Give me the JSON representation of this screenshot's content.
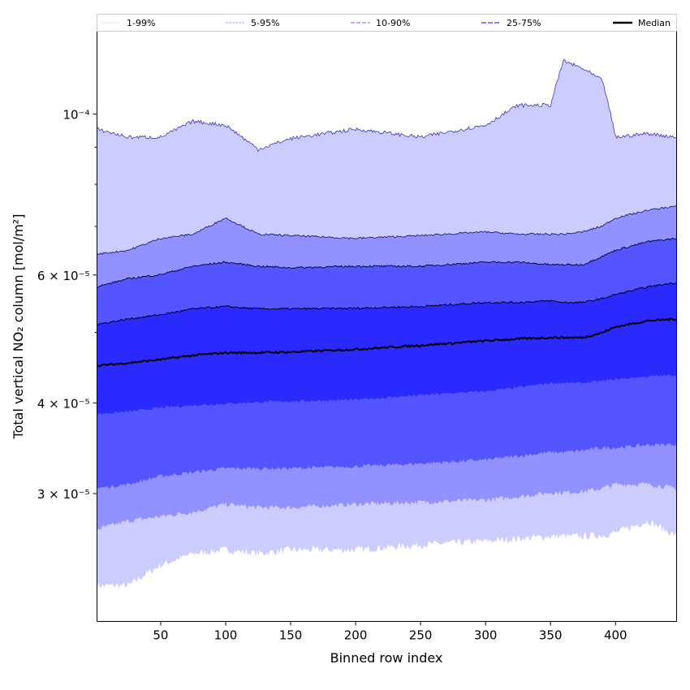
{
  "chart_data": {
    "type": "area",
    "title": "",
    "xlabel": "Binned row index",
    "ylabel": "Total vertical NO₂ column [mol/m²]",
    "yscale": "log",
    "xlim": [
      1,
      447
    ],
    "ylim": [
      2e-05,
      0.00013
    ],
    "grid": false,
    "legend_placement": "top, horizontal",
    "xticks": [
      50,
      100,
      150,
      200,
      250,
      300,
      350,
      400
    ],
    "xtick_labels": [
      "50",
      "100",
      "150",
      "200",
      "250",
      "300",
      "350",
      "400"
    ],
    "yticks": [
      0.0001,
      6e-05,
      4e-05,
      3e-05
    ],
    "ytick_labels": [
      "10⁻⁴",
      "6 × 10⁻⁵",
      "4 × 10⁻⁵",
      "3 × 10⁻⁵"
    ],
    "yminor_ticks": [
      5e-05,
      7e-05,
      8e-05,
      9e-05
    ],
    "legend": [
      "1-99%",
      "5-95%",
      "10-90%",
      "25-75%",
      "Median"
    ],
    "colors": {
      "band_1_99": "#ccccff",
      "band_5_95": "#9191ff",
      "band_10_90": "#5555ff",
      "band_25_75": "#2a2aff",
      "median": "#000000"
    },
    "x": [
      1,
      25,
      50,
      75,
      100,
      125,
      150,
      200,
      250,
      300,
      325,
      350,
      360,
      375,
      390,
      400,
      425,
      447
    ],
    "series": [
      {
        "name": "p1",
        "values": [
          2.24e-05,
          2.24e-05,
          2.39e-05,
          2.48e-05,
          2.51e-05,
          2.48e-05,
          2.51e-05,
          2.51e-05,
          2.55e-05,
          2.58e-05,
          2.6e-05,
          2.62e-05,
          2.62e-05,
          2.62e-05,
          2.63e-05,
          2.65e-05,
          2.75e-05,
          2.62e-05
        ]
      },
      {
        "name": "p5",
        "values": [
          2.68e-05,
          2.75e-05,
          2.79e-05,
          2.83e-05,
          2.9e-05,
          2.87e-05,
          2.87e-05,
          2.9e-05,
          2.92e-05,
          2.94e-05,
          2.97e-05,
          3.01e-05,
          3.01e-05,
          3.02e-05,
          3.05e-05,
          3.09e-05,
          3.09e-05,
          3.05e-05
        ]
      },
      {
        "name": "p10",
        "values": [
          3.05e-05,
          3.09e-05,
          3.17e-05,
          3.21e-05,
          3.25e-05,
          3.25e-05,
          3.25e-05,
          3.27e-05,
          3.3e-05,
          3.34e-05,
          3.38e-05,
          3.42e-05,
          3.42e-05,
          3.44e-05,
          3.47e-05,
          3.47e-05,
          3.5e-05,
          3.51e-05
        ]
      },
      {
        "name": "p25",
        "values": [
          3.86e-05,
          3.89e-05,
          3.94e-05,
          3.97e-05,
          3.99e-05,
          4.01e-05,
          4.02e-05,
          4.04e-05,
          4.1e-05,
          4.15e-05,
          4.2e-05,
          4.26e-05,
          4.26e-05,
          4.26e-05,
          4.29e-05,
          4.31e-05,
          4.35e-05,
          4.37e-05
        ]
      },
      {
        "name": "median",
        "values": [
          4.5e-05,
          4.54e-05,
          4.59e-05,
          4.65e-05,
          4.69e-05,
          4.69e-05,
          4.7e-05,
          4.74e-05,
          4.8e-05,
          4.87e-05,
          4.9e-05,
          4.92e-05,
          4.92e-05,
          4.92e-05,
          5e-05,
          5.09e-05,
          5.19e-05,
          5.22e-05
        ]
      },
      {
        "name": "p75",
        "values": [
          5.13e-05,
          5.22e-05,
          5.29e-05,
          5.39e-05,
          5.43e-05,
          5.39e-05,
          5.39e-05,
          5.4e-05,
          5.43e-05,
          5.5e-05,
          5.5e-05,
          5.53e-05,
          5.5e-05,
          5.5e-05,
          5.57e-05,
          5.64e-05,
          5.78e-05,
          5.86e-05
        ]
      },
      {
        "name": "p90",
        "values": [
          5.78e-05,
          5.93e-05,
          6.01e-05,
          6.17e-05,
          6.25e-05,
          6.17e-05,
          6.14e-05,
          6.17e-05,
          6.17e-05,
          6.25e-05,
          6.25e-05,
          6.2e-05,
          6.2e-05,
          6.2e-05,
          6.37e-05,
          6.49e-05,
          6.67e-05,
          6.74e-05
        ]
      },
      {
        "name": "p95",
        "values": [
          6.41e-05,
          6.49e-05,
          6.74e-05,
          6.83e-05,
          7.19e-05,
          6.83e-05,
          6.8e-05,
          6.74e-05,
          6.8e-05,
          6.88e-05,
          6.83e-05,
          6.83e-05,
          6.83e-05,
          6.88e-05,
          7.01e-05,
          7.19e-05,
          7.37e-05,
          7.47e-05
        ]
      },
      {
        "name": "p99",
        "values": [
          9.53e-05,
          9.29e-05,
          9.29e-05,
          9.77e-05,
          9.65e-05,
          8.94e-05,
          9.25e-05,
          9.53e-05,
          9.29e-05,
          9.65e-05,
          0.0001028,
          0.0001028,
          0.0001184,
          0.0001154,
          0.0001111,
          9.29e-05,
          9.4e-05,
          9.29e-05
        ]
      }
    ]
  }
}
